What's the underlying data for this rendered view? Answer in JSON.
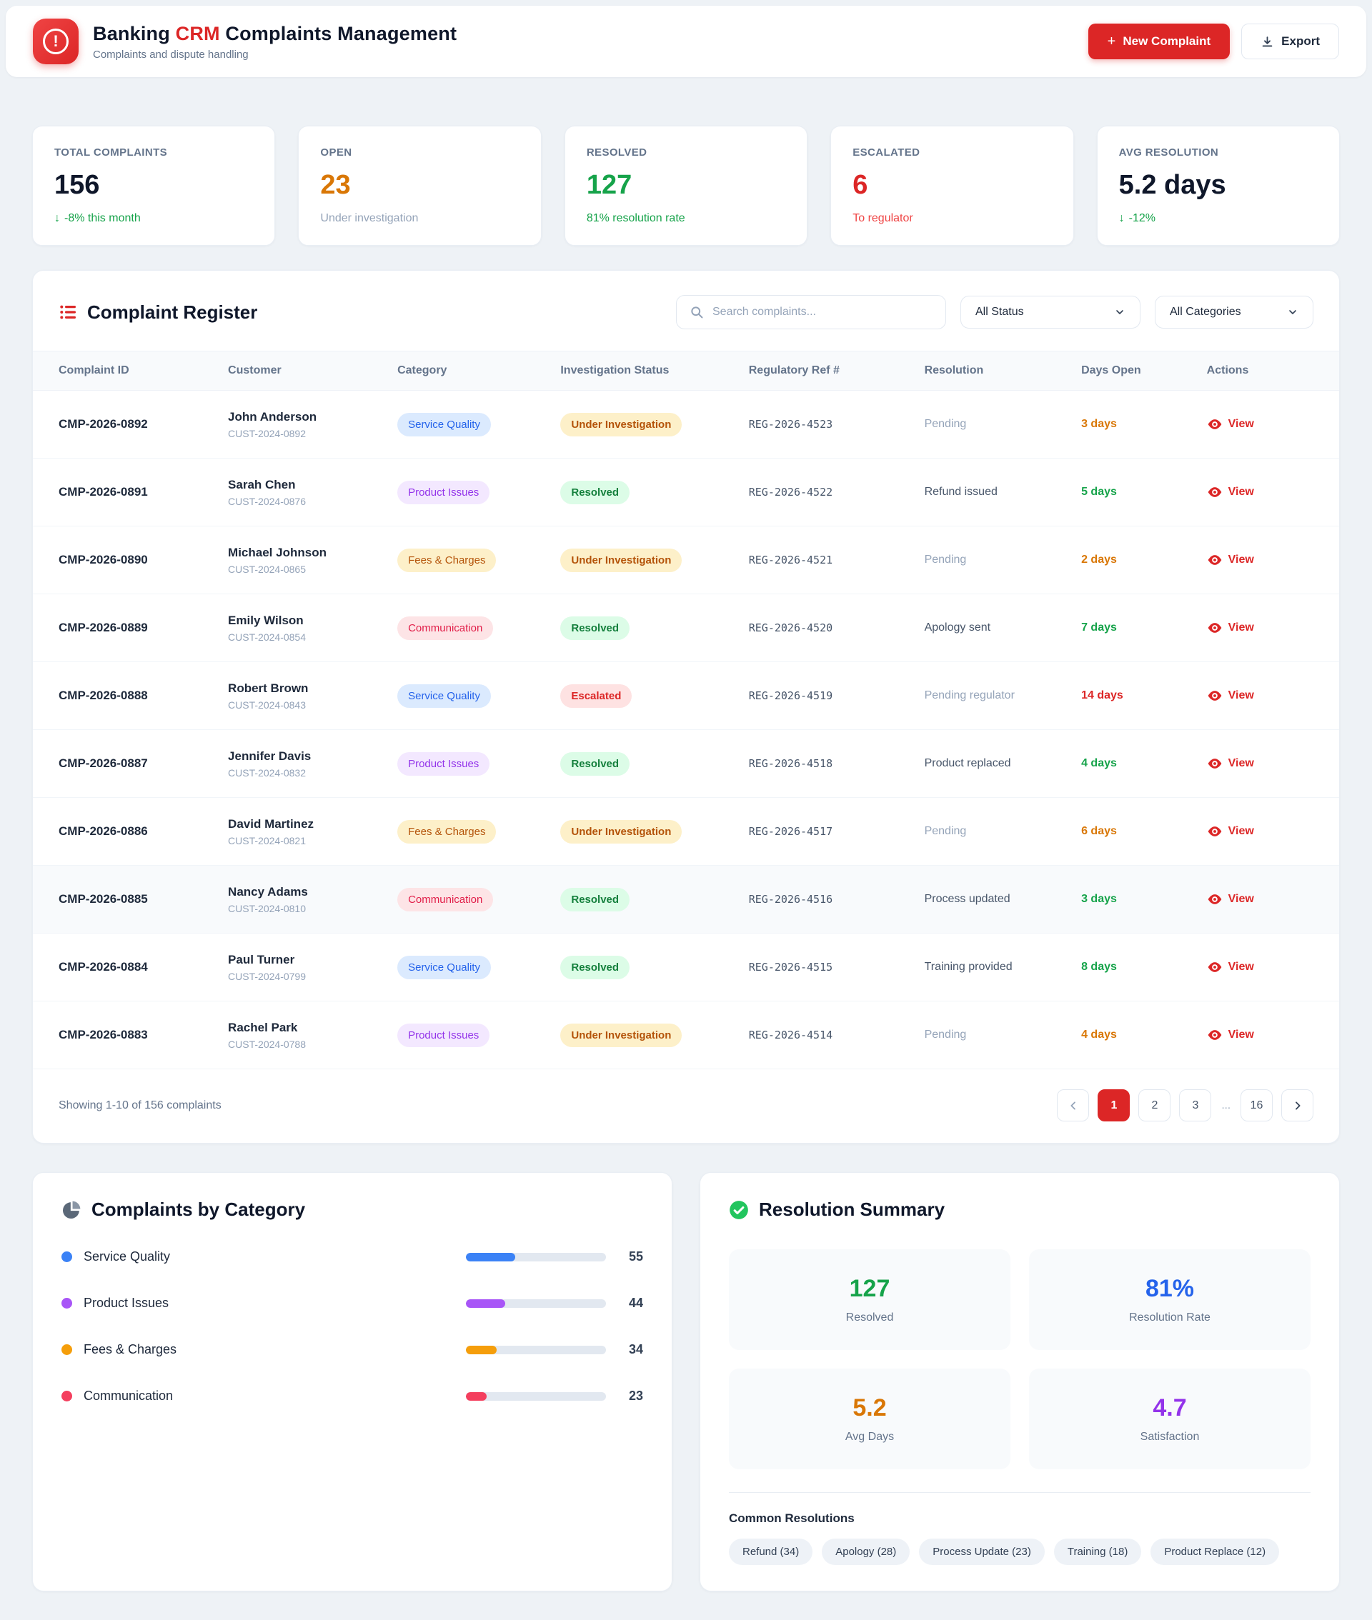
{
  "colors": {
    "brand_red": "#dc2626",
    "green": "#16a34a",
    "orange": "#d97706",
    "blue": "#2563eb",
    "purple": "#9333ea",
    "rose": "#e11d48",
    "dark": "#0f172a",
    "muted": "#64748b"
  },
  "icons": {
    "logo": "alert-circle",
    "new_complaint": "plus",
    "export": "download",
    "register": "list",
    "search": "magnifier",
    "filters": "chevron-down",
    "view": "eye",
    "category_panel": "pie-chart",
    "summary_panel": "check-circle",
    "trend": "arrow-down",
    "pager_prev": "chevron-left",
    "pager_next": "chevron-right"
  },
  "header": {
    "title_part1": "Banking ",
    "title_accent": "CRM",
    "title_part2": " Complaints Management",
    "subtitle": "Complaints and dispute handling",
    "new_complaint_label": "New Complaint",
    "export_label": "Export"
  },
  "stats": [
    {
      "label": "TOTAL COMPLAINTS",
      "value": "156",
      "trend": "↓",
      "sub": "-8% this month",
      "value_color": "#0f172a",
      "sub_color": "#16a34a"
    },
    {
      "label": "OPEN",
      "value": "23",
      "trend": "",
      "sub": "Under investigation",
      "value_color": "#d97706",
      "sub_color": "#94a3b8"
    },
    {
      "label": "RESOLVED",
      "value": "127",
      "trend": "",
      "sub": "81% resolution rate",
      "value_color": "#16a34a",
      "sub_color": "#16a34a"
    },
    {
      "label": "ESCALATED",
      "value": "6",
      "trend": "",
      "sub": "To regulator",
      "value_color": "#dc2626",
      "sub_color": "#ef4444"
    },
    {
      "label": "AVG RESOLUTION",
      "value": "5.2 days",
      "trend": "↓",
      "sub": "-12%",
      "value_color": "#0f172a",
      "sub_color": "#16a34a"
    }
  ],
  "register": {
    "title": "Complaint Register",
    "search_placeholder": "Search complaints...",
    "status_filter": "All Status",
    "category_filter": "All Categories",
    "columns": [
      "Complaint ID",
      "Customer",
      "Category",
      "Investigation Status",
      "Regulatory Ref #",
      "Resolution",
      "Days Open",
      "Actions"
    ],
    "view_label": "View",
    "rows": [
      {
        "id": "CMP-2026-0892",
        "customer": "John Anderson",
        "customer_id": "CUST-2024-0892",
        "category": "Service Quality",
        "status": "Under Investigation",
        "reg_ref": "REG-2026-4523",
        "resolution": "Pending",
        "resolution_color": "#94a3b8",
        "days": "3 days",
        "days_color": "#d97706"
      },
      {
        "id": "CMP-2026-0891",
        "customer": "Sarah Chen",
        "customer_id": "CUST-2024-0876",
        "category": "Product Issues",
        "status": "Resolved",
        "reg_ref": "REG-2026-4522",
        "resolution": "Refund issued",
        "resolution_color": "#475569",
        "days": "5 days",
        "days_color": "#16a34a"
      },
      {
        "id": "CMP-2026-0890",
        "customer": "Michael Johnson",
        "customer_id": "CUST-2024-0865",
        "category": "Fees & Charges",
        "status": "Under Investigation",
        "reg_ref": "REG-2026-4521",
        "resolution": "Pending",
        "resolution_color": "#94a3b8",
        "days": "2 days",
        "days_color": "#d97706"
      },
      {
        "id": "CMP-2026-0889",
        "customer": "Emily Wilson",
        "customer_id": "CUST-2024-0854",
        "category": "Communication",
        "status": "Resolved",
        "reg_ref": "REG-2026-4520",
        "resolution": "Apology sent",
        "resolution_color": "#475569",
        "days": "7 days",
        "days_color": "#16a34a"
      },
      {
        "id": "CMP-2026-0888",
        "customer": "Robert Brown",
        "customer_id": "CUST-2024-0843",
        "category": "Service Quality",
        "status": "Escalated",
        "reg_ref": "REG-2026-4519",
        "resolution": "Pending regulator",
        "resolution_color": "#94a3b8",
        "days": "14 days",
        "days_color": "#dc2626"
      },
      {
        "id": "CMP-2026-0887",
        "customer": "Jennifer Davis",
        "customer_id": "CUST-2024-0832",
        "category": "Product Issues",
        "status": "Resolved",
        "reg_ref": "REG-2026-4518",
        "resolution": "Product replaced",
        "resolution_color": "#475569",
        "days": "4 days",
        "days_color": "#16a34a"
      },
      {
        "id": "CMP-2026-0886",
        "customer": "David Martinez",
        "customer_id": "CUST-2024-0821",
        "category": "Fees & Charges",
        "status": "Under Investigation",
        "reg_ref": "REG-2026-4517",
        "resolution": "Pending",
        "resolution_color": "#94a3b8",
        "days": "6 days",
        "days_color": "#d97706"
      },
      {
        "id": "CMP-2026-0885",
        "customer": "Nancy Adams",
        "customer_id": "CUST-2024-0810",
        "category": "Communication",
        "status": "Resolved",
        "reg_ref": "REG-2026-4516",
        "resolution": "Process updated",
        "resolution_color": "#475569",
        "days": "3 days",
        "days_color": "#16a34a"
      },
      {
        "id": "CMP-2026-0884",
        "customer": "Paul Turner",
        "customer_id": "CUST-2024-0799",
        "category": "Service Quality",
        "status": "Resolved",
        "reg_ref": "REG-2026-4515",
        "resolution": "Training provided",
        "resolution_color": "#475569",
        "days": "8 days",
        "days_color": "#16a34a"
      },
      {
        "id": "CMP-2026-0883",
        "customer": "Rachel Park",
        "customer_id": "CUST-2024-0788",
        "category": "Product Issues",
        "status": "Under Investigation",
        "reg_ref": "REG-2026-4514",
        "resolution": "Pending",
        "resolution_color": "#94a3b8",
        "days": "4 days",
        "days_color": "#d97706"
      }
    ],
    "footer": "Showing 1-10 of 156 complaints",
    "pagination": {
      "pages": [
        "1",
        "2",
        "3",
        "...",
        "16"
      ],
      "active": "1"
    }
  },
  "chart_data": {
    "type": "bar",
    "title": "Complaints by Category",
    "categories": [
      "Service Quality",
      "Product Issues",
      "Fees & Charges",
      "Communication"
    ],
    "values": [
      55,
      44,
      34,
      23
    ],
    "colors": [
      "#3b82f6",
      "#a855f7",
      "#f59e0b",
      "#f43f5e"
    ],
    "max_total": 156
  },
  "category_panel": {
    "title": "Complaints by Category",
    "items": [
      {
        "label": "Service Quality",
        "value": "55",
        "color": "#3b82f6"
      },
      {
        "label": "Product Issues",
        "value": "44",
        "color": "#a855f7"
      },
      {
        "label": "Fees & Charges",
        "value": "34",
        "color": "#f59e0b"
      },
      {
        "label": "Communication",
        "value": "23",
        "color": "#f43f5e"
      }
    ]
  },
  "summary": {
    "title": "Resolution Summary",
    "tiles": [
      {
        "value": "127",
        "label": "Resolved",
        "color": "#16a34a"
      },
      {
        "value": "81%",
        "label": "Resolution Rate",
        "color": "#2563eb"
      },
      {
        "value": "5.2",
        "label": "Avg Days",
        "color": "#d97706"
      },
      {
        "value": "4.7",
        "label": "Satisfaction",
        "color": "#9333ea"
      }
    ],
    "common_title": "Common Resolutions",
    "tags": [
      "Refund (34)",
      "Apology (28)",
      "Process Update (23)",
      "Training (18)",
      "Product Replace (12)"
    ]
  }
}
